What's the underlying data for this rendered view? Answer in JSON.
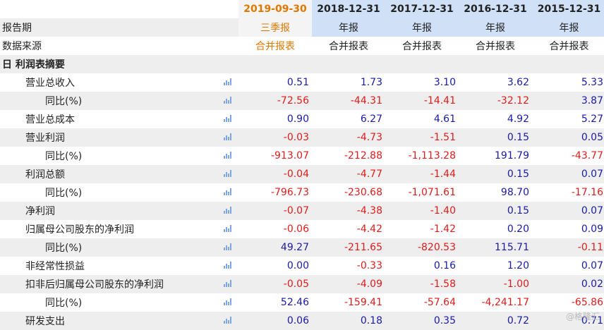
{
  "header": {
    "periods": [
      "2019-09-30",
      "2018-12-31",
      "2017-12-31",
      "2016-12-31",
      "2015-12-31"
    ]
  },
  "meta_rows": [
    {
      "label": "报告期",
      "values": [
        "三季报",
        "年报",
        "年报",
        "年报",
        "年报"
      ]
    },
    {
      "label": "数据来源",
      "values": [
        "合并报表",
        "合并报表",
        "合并报表",
        "合并报表",
        "合并报表"
      ]
    }
  ],
  "section": {
    "toggle": "日",
    "title": "利润表摘要"
  },
  "rows": [
    {
      "label": "营业总收入",
      "level": 1,
      "values": [
        "0.51",
        "1.73",
        "3.10",
        "3.62",
        "5.33"
      ]
    },
    {
      "label": "同比(%)",
      "level": 2,
      "values": [
        "-72.56",
        "-44.31",
        "-14.41",
        "-32.12",
        "3.87"
      ]
    },
    {
      "label": "营业总成本",
      "level": 1,
      "values": [
        "0.90",
        "6.27",
        "4.61",
        "4.92",
        "5.27"
      ]
    },
    {
      "label": "营业利润",
      "level": 1,
      "values": [
        "-0.03",
        "-4.73",
        "-1.51",
        "0.15",
        "0.05"
      ]
    },
    {
      "label": "同比(%)",
      "level": 2,
      "values": [
        "-913.07",
        "-212.88",
        "-1,113.28",
        "191.79",
        "-43.77"
      ]
    },
    {
      "label": "利润总额",
      "level": 1,
      "values": [
        "-0.04",
        "-4.77",
        "-1.44",
        "0.15",
        "0.07"
      ]
    },
    {
      "label": "同比(%)",
      "level": 2,
      "values": [
        "-796.73",
        "-230.68",
        "-1,071.61",
        "98.70",
        "-17.16"
      ]
    },
    {
      "label": "净利润",
      "level": 1,
      "values": [
        "-0.07",
        "-4.38",
        "-1.40",
        "0.15",
        "0.07"
      ]
    },
    {
      "label": "归属母公司股东的净利润",
      "level": 1,
      "values": [
        "-0.06",
        "-4.42",
        "-1.42",
        "0.20",
        "0.09"
      ]
    },
    {
      "label": "同比(%)",
      "level": 2,
      "values": [
        "49.27",
        "-211.65",
        "-820.53",
        "115.71",
        "-0.11"
      ]
    },
    {
      "label": "非经常性损益",
      "level": 1,
      "values": [
        "0.00",
        "-0.33",
        "0.16",
        "1.20",
        "0.07"
      ]
    },
    {
      "label": "扣非后归属母公司股东的净利润",
      "level": 1,
      "values": [
        "-0.05",
        "-4.09",
        "-1.58",
        "-1.00",
        "0.02"
      ]
    },
    {
      "label": "同比(%)",
      "level": 2,
      "values": [
        "52.46",
        "-159.41",
        "-57.64",
        "-4,241.17",
        "-65.86"
      ]
    },
    {
      "label": "研发支出",
      "level": 1,
      "values": [
        "0.06",
        "0.18",
        "0.35",
        "0.72",
        "0.71"
      ]
    }
  ],
  "colors": {
    "positive": "#1a1aa6",
    "negative": "#e11b1b",
    "highlight": "#e07800",
    "header_bg": "#cfe0f7"
  },
  "icons": {
    "chart": "bar-chart-icon",
    "collapse": "collapse-icon"
  },
  "watermark": "@格隆汇"
}
